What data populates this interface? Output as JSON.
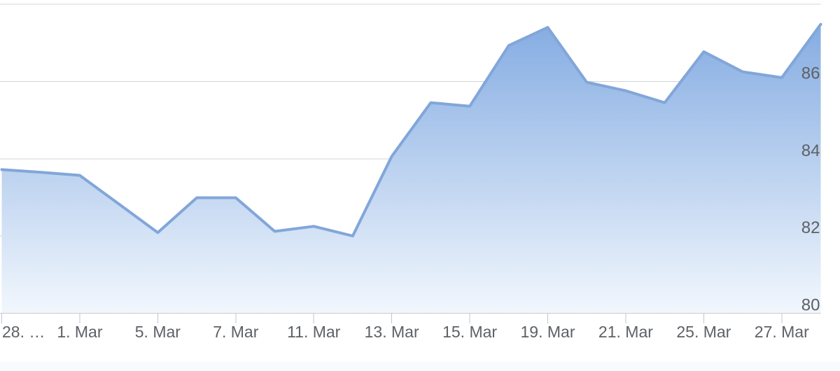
{
  "chart_data": {
    "type": "area",
    "title": "",
    "num_points": 22,
    "values": [
      83.72,
      83.65,
      83.57,
      82.83,
      82.09,
      82.99,
      82.99,
      82.12,
      82.25,
      82.0,
      84.06,
      85.45,
      85.36,
      86.93,
      87.4,
      85.98,
      85.76,
      85.45,
      86.77,
      86.25,
      86.1,
      87.48
    ],
    "x_axis": {
      "tick_labels": [
        "28. …",
        "1. Mar",
        "5. Mar",
        "7. Mar",
        "11. Mar",
        "13. Mar",
        "15. Mar",
        "19. Mar",
        "21. Mar",
        "25. Mar",
        "27. Mar"
      ],
      "tick_point_indices": [
        0,
        2,
        4,
        6,
        8,
        10,
        12,
        14,
        16,
        18,
        20
      ]
    },
    "y_axis": {
      "side": "right",
      "labels_inside": true,
      "tick_labels_shown": [
        "86",
        "84",
        "82",
        "80"
      ],
      "tick_values_shown": [
        86,
        84,
        82,
        80
      ],
      "gridline_values": [
        88,
        86,
        84,
        82
      ],
      "baseline_value": 80,
      "ylim": [
        80,
        88
      ]
    },
    "grid": true,
    "legend": false
  },
  "colors": {
    "background": "#ffffff",
    "line": "#82a6d9",
    "fill_top": "#7da7e0",
    "fill_bottom": "#f2f7fd",
    "grid": "#cfd3d7",
    "axis": "#c6cbd1",
    "tick": "#bfc6cd",
    "label": "#5d6166",
    "bottom_strip": "#f9fafc"
  }
}
